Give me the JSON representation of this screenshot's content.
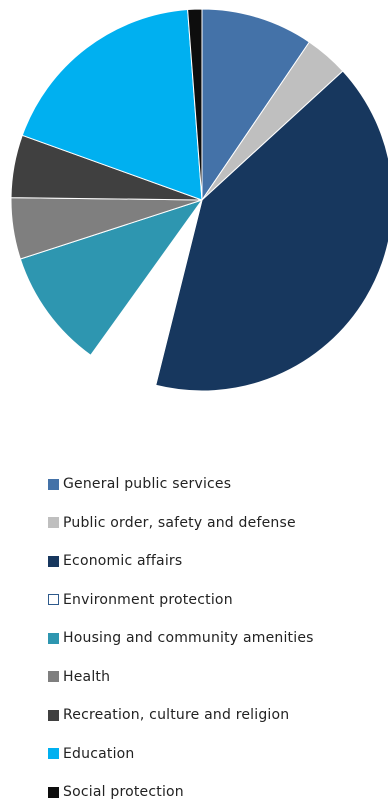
{
  "chart_data": {
    "type": "pie",
    "title": "",
    "legend_position": "bottom",
    "slices": [
      {
        "label": "General public services",
        "value": 9.5,
        "color": "#4472a8"
      },
      {
        "label": "Public order, safety and defense",
        "value": 3.7,
        "color": "#bfbfbf"
      },
      {
        "label": "Economic affairs",
        "value": 40.7,
        "color": "#17375e"
      },
      {
        "label": "Environment protection",
        "value": 6.0,
        "color": "#ffffff",
        "border": "#2e5a8c"
      },
      {
        "label": "Housing and community amenities",
        "value": 10.1,
        "color": "#2e96b0"
      },
      {
        "label": "Health",
        "value": 5.2,
        "color": "#7f7f7f"
      },
      {
        "label": "Recreation, culture and religion",
        "value": 5.3,
        "color": "#404040"
      },
      {
        "label": "Education",
        "value": 18.3,
        "color": "#00b0f0"
      },
      {
        "label": "Social protection",
        "value": 1.2,
        "color": "#0d0d0d"
      }
    ]
  }
}
